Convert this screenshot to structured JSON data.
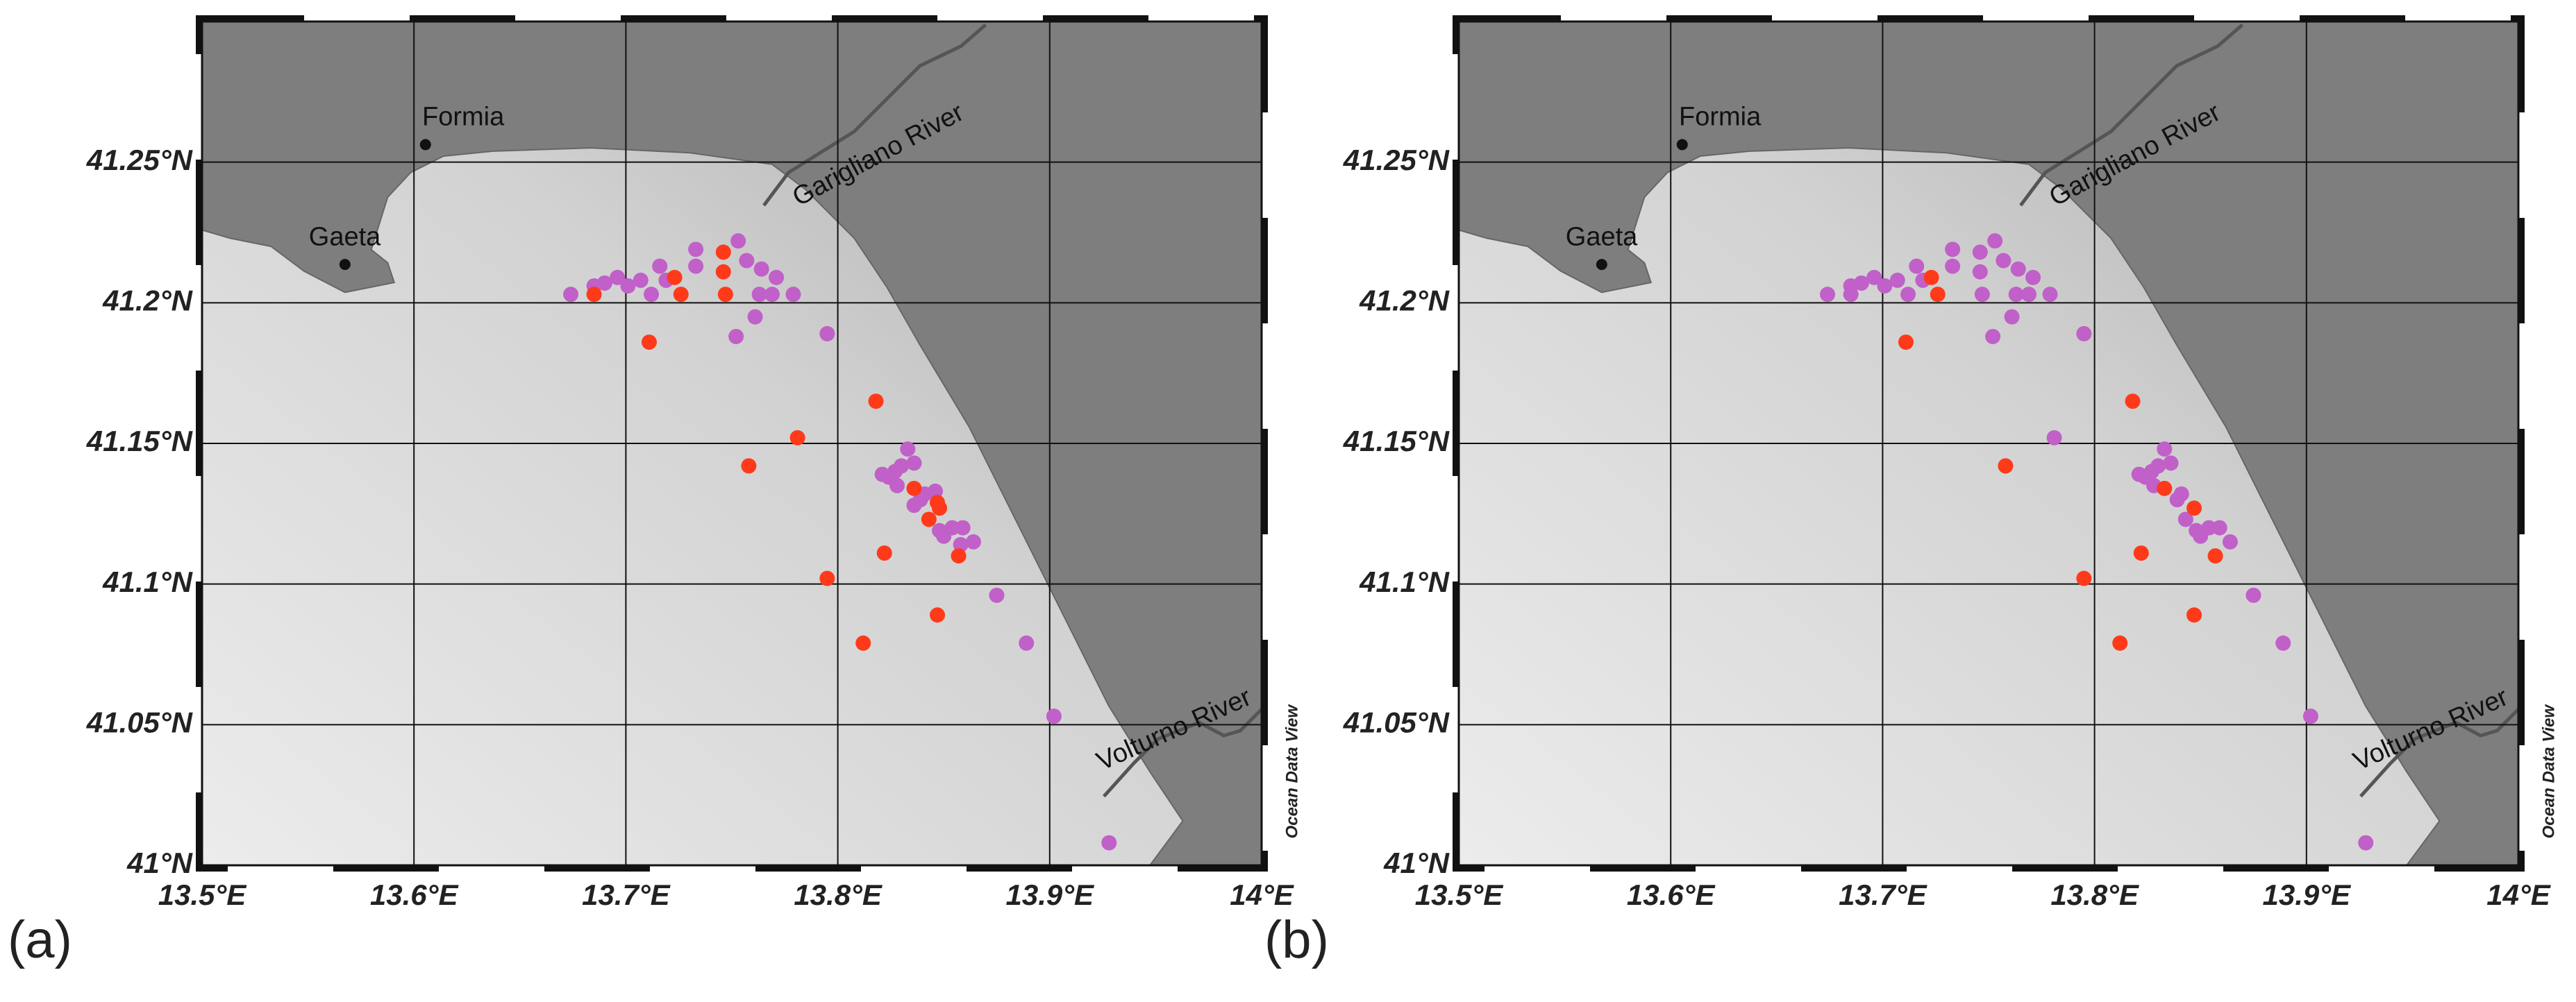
{
  "chart_data": [
    {
      "type": "scatter",
      "panel_label": "(a)",
      "annotations": [
        "Formia",
        "Gaeta",
        "Garigliano River",
        "Volturno River",
        "Ocean Data View"
      ],
      "xlim": [
        13.5,
        14.0
      ],
      "ylim": [
        41.0,
        41.3
      ],
      "xticks": [
        {
          "value": 13.5,
          "label": "13.5°E"
        },
        {
          "value": 13.6,
          "label": "13.6°E"
        },
        {
          "value": 13.7,
          "label": "13.7°E"
        },
        {
          "value": 13.8,
          "label": "13.8°E"
        },
        {
          "value": 13.9,
          "label": "13.9°E"
        },
        {
          "value": 14.0,
          "label": "14°E"
        }
      ],
      "yticks": [
        {
          "value": 41.0,
          "label": "41°N"
        },
        {
          "value": 41.05,
          "label": "41.05°N"
        },
        {
          "value": 41.1,
          "label": "41.1°N"
        },
        {
          "value": 41.15,
          "label": "41.15°N"
        },
        {
          "value": 41.2,
          "label": "41.2°N"
        },
        {
          "value": 41.25,
          "label": "41.25°N"
        }
      ],
      "grid": true,
      "series": [
        {
          "color": "#c060c8",
          "x": [
            13.674,
            13.685,
            13.69,
            13.696,
            13.701,
            13.707,
            13.712,
            13.716,
            13.719,
            13.733,
            13.733,
            13.753,
            13.757,
            13.764,
            13.763,
            13.769,
            13.771,
            13.779,
            13.752,
            13.761,
            13.795,
            13.824,
            13.821,
            13.827,
            13.83,
            13.833,
            13.836,
            13.828,
            13.836,
            13.839,
            13.841,
            13.846,
            13.85,
            13.854,
            13.859,
            13.864,
            13.848,
            13.858,
            13.875,
            13.889,
            13.902,
            13.928
          ],
          "values": [
            41.203,
            41.206,
            41.207,
            41.209,
            41.206,
            41.208,
            41.203,
            41.213,
            41.208,
            41.213,
            41.219,
            41.222,
            41.215,
            41.212,
            41.203,
            41.203,
            41.209,
            41.203,
            41.188,
            41.195,
            41.189,
            41.138,
            41.139,
            41.14,
            41.142,
            41.148,
            41.143,
            41.135,
            41.128,
            41.13,
            41.132,
            41.133,
            41.117,
            41.12,
            41.12,
            41.115,
            41.119,
            41.114,
            41.096,
            41.079,
            41.053,
            41.008
          ]
        },
        {
          "color": "#ff3a1a",
          "x": [
            13.685,
            13.723,
            13.726,
            13.746,
            13.746,
            13.747,
            13.711,
            13.781,
            13.758,
            13.818,
            13.836,
            13.847,
            13.843,
            13.848,
            13.822,
            13.857,
            13.795,
            13.847,
            13.812
          ],
          "values": [
            41.203,
            41.209,
            41.203,
            41.218,
            41.211,
            41.203,
            41.186,
            41.152,
            41.142,
            41.165,
            41.134,
            41.129,
            41.123,
            41.127,
            41.111,
            41.11,
            41.102,
            41.089,
            41.079
          ]
        }
      ]
    },
    {
      "type": "scatter",
      "panel_label": "(b)",
      "annotations": [
        "Formia",
        "Gaeta",
        "Garigliano River",
        "Volturno River",
        "Ocean Data View"
      ],
      "xlim": [
        13.5,
        14.0
      ],
      "ylim": [
        41.0,
        41.3
      ],
      "xticks": [
        {
          "value": 13.5,
          "label": "13.5°E"
        },
        {
          "value": 13.6,
          "label": "13.6°E"
        },
        {
          "value": 13.7,
          "label": "13.7°E"
        },
        {
          "value": 13.8,
          "label": "13.8°E"
        },
        {
          "value": 13.9,
          "label": "13.9°E"
        },
        {
          "value": 14.0,
          "label": "14°E"
        }
      ],
      "yticks": [
        {
          "value": 41.0,
          "label": "41°N"
        },
        {
          "value": 41.05,
          "label": "41.05°N"
        },
        {
          "value": 41.1,
          "label": "41.1°N"
        },
        {
          "value": 41.15,
          "label": "41.15°N"
        },
        {
          "value": 41.2,
          "label": "41.2°N"
        },
        {
          "value": 41.25,
          "label": "41.25°N"
        }
      ],
      "grid": true,
      "series": [
        {
          "color": "#c060c8",
          "x": [
            13.674,
            13.685,
            13.69,
            13.696,
            13.701,
            13.707,
            13.712,
            13.716,
            13.719,
            13.733,
            13.733,
            13.753,
            13.757,
            13.764,
            13.763,
            13.769,
            13.771,
            13.779,
            13.752,
            13.761,
            13.795,
            13.824,
            13.821,
            13.827,
            13.83,
            13.833,
            13.836,
            13.828,
            13.839,
            13.841,
            13.85,
            13.854,
            13.859,
            13.864,
            13.848,
            13.875,
            13.889,
            13.902,
            13.928,
            13.685,
            13.746,
            13.746,
            13.747,
            13.781,
            13.843
          ],
          "values": [
            41.203,
            41.206,
            41.207,
            41.209,
            41.206,
            41.208,
            41.203,
            41.213,
            41.208,
            41.213,
            41.219,
            41.222,
            41.215,
            41.212,
            41.203,
            41.203,
            41.209,
            41.203,
            41.188,
            41.195,
            41.189,
            41.138,
            41.139,
            41.14,
            41.142,
            41.148,
            41.143,
            41.135,
            41.13,
            41.132,
            41.117,
            41.12,
            41.12,
            41.115,
            41.119,
            41.096,
            41.079,
            41.053,
            41.008,
            41.203,
            41.218,
            41.211,
            41.203,
            41.152,
            41.123
          ]
        },
        {
          "color": "#ff3a1a",
          "x": [
            13.723,
            13.726,
            13.711,
            13.758,
            13.818,
            13.833,
            13.847,
            13.822,
            13.795,
            13.847,
            13.812,
            13.857
          ],
          "values": [
            41.209,
            41.203,
            41.186,
            41.142,
            41.165,
            41.134,
            41.127,
            41.111,
            41.102,
            41.089,
            41.079,
            41.11
          ]
        }
      ]
    }
  ]
}
